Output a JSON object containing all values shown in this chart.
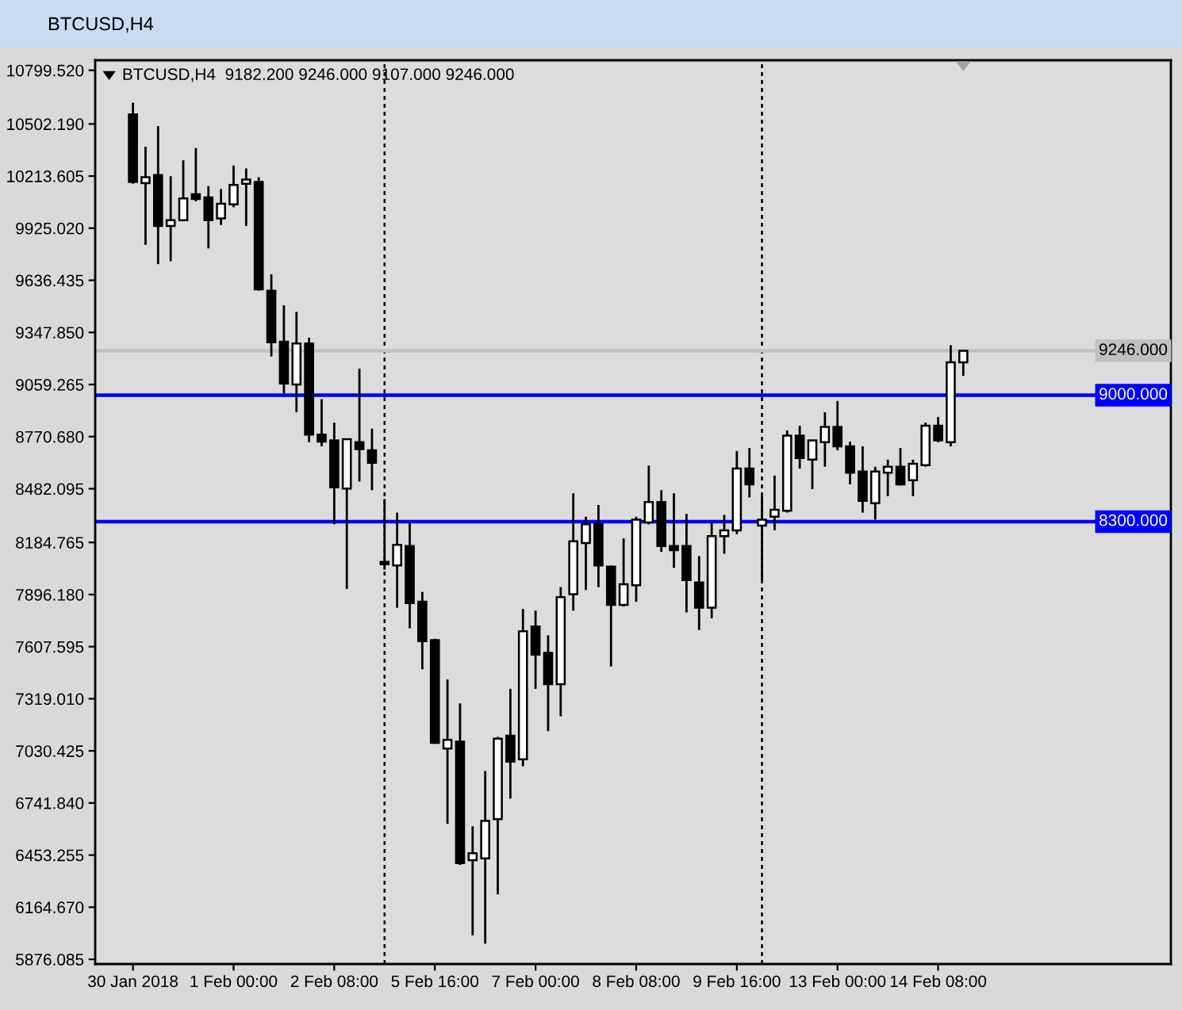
{
  "chart_data": {
    "type": "candlestick",
    "title": "BTCUSD,H4",
    "subtitle": "BTCUSD,H4  9182.200 9246.000 9107.000 9246.000",
    "categories": [
      "30 Jan 2018",
      null,
      null,
      null,
      null,
      null,
      null,
      null,
      "1 Feb 00:00",
      null,
      null,
      null,
      null,
      null,
      null,
      null,
      "2 Feb 08:00",
      null,
      null,
      null,
      null,
      null,
      null,
      null,
      "5 Feb 16:00",
      null,
      null,
      null,
      null,
      null,
      null,
      null,
      "7 Feb 00:00",
      null,
      null,
      null,
      null,
      null,
      null,
      null,
      "8 Feb 08:00",
      null,
      null,
      null,
      null,
      null,
      null,
      null,
      "9 Feb 16:00",
      null,
      null,
      null,
      null,
      null,
      null,
      null,
      "13 Feb 00:00",
      null,
      null,
      null,
      null,
      null,
      null,
      null,
      "14 Feb 08:00",
      null,
      null
    ],
    "ohlc": [
      [
        10555,
        10620,
        10171,
        10181
      ],
      [
        10174,
        10376,
        9833,
        10207
      ],
      [
        10220,
        10490,
        9726,
        9937
      ],
      [
        9937,
        10213,
        9742,
        9969
      ],
      [
        9969,
        10301,
        9963,
        10090
      ],
      [
        10113,
        10369,
        10074,
        10087
      ],
      [
        10096,
        10158,
        9813,
        9969
      ],
      [
        9979,
        10142,
        9943,
        10060
      ],
      [
        10057,
        10272,
        10041,
        10165
      ],
      [
        10171,
        10256,
        9937,
        10194
      ],
      [
        10181,
        10207,
        9579,
        9586
      ],
      [
        9579,
        9670,
        9215,
        9293
      ],
      [
        9296,
        9498,
        9010,
        9065
      ],
      [
        9059,
        9462,
        8906,
        9287
      ],
      [
        9287,
        9319,
        8740,
        8782
      ],
      [
        8782,
        8978,
        8717,
        8743
      ],
      [
        8750,
        8848,
        8285,
        8490
      ],
      [
        8483,
        8756,
        7927,
        8756
      ],
      [
        8740,
        9147,
        8522,
        8701
      ],
      [
        8695,
        8815,
        8474,
        8626
      ],
      [
        8077,
        8425,
        8034,
        8064
      ],
      [
        8057,
        8350,
        7823,
        8171
      ],
      [
        8165,
        8295,
        7709,
        7849
      ],
      [
        7856,
        7911,
        7482,
        7638
      ],
      [
        7644,
        7651,
        7069,
        7075
      ],
      [
        7043,
        7426,
        6626,
        7091
      ],
      [
        7082,
        7293,
        6399,
        6409
      ],
      [
        6425,
        6613,
        6009,
        6464
      ],
      [
        6435,
        6919,
        5963,
        6643
      ],
      [
        6652,
        7108,
        6236,
        7098
      ],
      [
        7114,
        7374,
        6766,
        6971
      ],
      [
        6984,
        7817,
        6945,
        7693
      ],
      [
        7719,
        7807,
        7374,
        7563
      ],
      [
        7573,
        7670,
        7140,
        7400
      ],
      [
        7400,
        7937,
        7222,
        7882
      ],
      [
        7898,
        8457,
        7807,
        8191
      ],
      [
        8181,
        8327,
        7921,
        8285
      ],
      [
        8285,
        8392,
        7937,
        8057
      ],
      [
        8051,
        8057,
        7498,
        7839
      ],
      [
        7839,
        8207,
        7830,
        7953
      ],
      [
        7947,
        8327,
        7856,
        8311
      ],
      [
        8295,
        8610,
        8285,
        8408
      ],
      [
        8408,
        8474,
        8132,
        8165
      ],
      [
        8165,
        8457,
        8044,
        8142
      ],
      [
        8165,
        8343,
        7797,
        7976
      ],
      [
        7963,
        8109,
        7700,
        7823
      ],
      [
        7823,
        8295,
        7765,
        8220
      ],
      [
        8220,
        8337,
        8122,
        8252
      ],
      [
        8252,
        8691,
        8230,
        8594
      ],
      [
        8594,
        8708,
        8434,
        8506
      ],
      [
        8278,
        8441,
        7976,
        8311
      ],
      [
        8327,
        8555,
        8252,
        8366
      ],
      [
        8360,
        8805,
        8350,
        8776
      ],
      [
        8776,
        8831,
        8594,
        8652
      ],
      [
        8643,
        8750,
        8480,
        8750
      ],
      [
        8740,
        8906,
        8604,
        8825
      ],
      [
        8825,
        8968,
        8695,
        8717
      ],
      [
        8717,
        8743,
        8506,
        8571
      ],
      [
        8578,
        8717,
        8350,
        8415
      ],
      [
        8402,
        8604,
        8311,
        8578
      ],
      [
        8571,
        8643,
        8441,
        8604
      ],
      [
        8604,
        8708,
        8500,
        8506
      ],
      [
        8529,
        8643,
        8441,
        8620
      ],
      [
        8613,
        8848,
        8604,
        8831
      ],
      [
        8831,
        8880,
        8740,
        8750
      ],
      [
        8740,
        9277,
        8717,
        9182
      ],
      [
        9182.2,
        9246,
        9107,
        9246
      ]
    ],
    "ylim": [
      5850,
      10855
    ],
    "yticks": [
      {
        "value": 10799.52,
        "label": "10799.520"
      },
      {
        "value": 10502.19,
        "label": "10502.190"
      },
      {
        "value": 10213.605,
        "label": "10213.605"
      },
      {
        "value": 9925.02,
        "label": "9925.020"
      },
      {
        "value": 9636.435,
        "label": "9636.435"
      },
      {
        "value": 9347.85,
        "label": "9347.850"
      },
      {
        "value": 9059.265,
        "label": "9059.265"
      },
      {
        "value": 8770.68,
        "label": "8770.680"
      },
      {
        "value": 8482.095,
        "label": "8482.095"
      },
      {
        "value": 8184.765,
        "label": "8184.765"
      },
      {
        "value": 7896.18,
        "label": "7896.180"
      },
      {
        "value": 7607.595,
        "label": "7607.595"
      },
      {
        "value": 7319.01,
        "label": "7319.010"
      },
      {
        "value": 7030.425,
        "label": "7030.425"
      },
      {
        "value": 6741.84,
        "label": "6741.840"
      },
      {
        "value": 6453.255,
        "label": "6453.255"
      },
      {
        "value": 6164.67,
        "label": "6164.670"
      },
      {
        "value": 5876.085,
        "label": "5876.085"
      }
    ],
    "ref_lines": [
      {
        "axis": "y",
        "value": 9246,
        "label": "9246.000",
        "color": "#c0c0c0"
      },
      {
        "axis": "y",
        "value": 9000,
        "label": "9000.000",
        "color": "#0000ff"
      },
      {
        "axis": "y",
        "value": 8300,
        "label": "8300.000",
        "color": "#0000ff"
      }
    ]
  }
}
